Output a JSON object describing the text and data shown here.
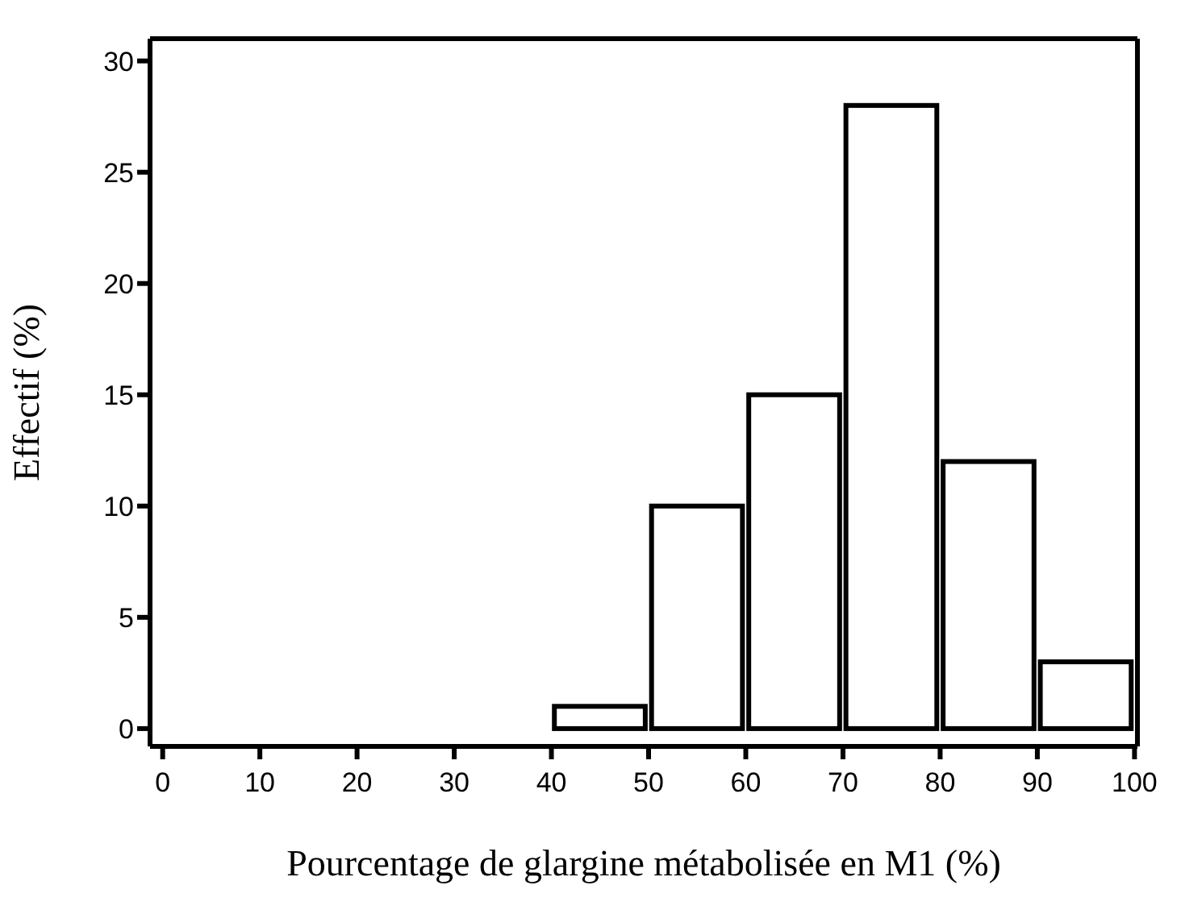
{
  "chart_data": {
    "type": "histogram",
    "xlabel": "Pourcentage de glargine métabolisée en M1 (%)",
    "ylabel": "Effectif (%)",
    "bins": [
      0,
      10,
      20,
      30,
      40,
      50,
      60,
      70,
      80,
      90,
      100
    ],
    "values": [
      0,
      0,
      0,
      0,
      1,
      10,
      15,
      28,
      12,
      3
    ],
    "color": "#000000",
    "xlim": [
      -1.3,
      100.3
    ],
    "ylim": [
      -0.8,
      31
    ],
    "xticks": [
      0,
      10,
      20,
      30,
      40,
      50,
      60,
      70,
      80,
      90,
      100
    ],
    "yticks": [
      0,
      5,
      10,
      15,
      20,
      25,
      30
    ],
    "grid": false,
    "legend": false
  }
}
